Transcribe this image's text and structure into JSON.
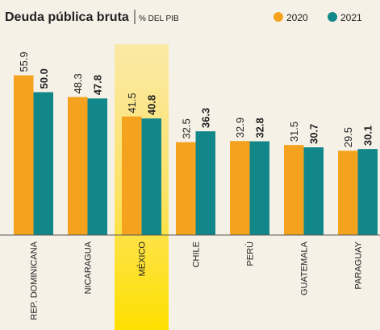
{
  "chart_data": {
    "type": "bar",
    "title": "Deuda pública bruta",
    "subtitle": "% DEL PIB",
    "categories": [
      "REP. DOMINICANA",
      "NICARAGUA",
      "MÉXICO",
      "CHILE",
      "PERÚ",
      "GUATEMALA",
      "PARAGUAY"
    ],
    "highlight": "MÉXICO",
    "series": [
      {
        "name": "2020",
        "color": "#f5a31e",
        "values": [
          55.9,
          48.3,
          41.5,
          32.5,
          32.9,
          31.5,
          29.5
        ]
      },
      {
        "name": "2021",
        "color": "#12878a",
        "values": [
          50.0,
          47.8,
          40.8,
          36.3,
          32.8,
          30.7,
          30.1
        ],
        "value_labels": [
          "50.0",
          "47.8",
          "40.8",
          "36.3",
          "32.8",
          "30.7",
          "30.1"
        ]
      }
    ]
  }
}
